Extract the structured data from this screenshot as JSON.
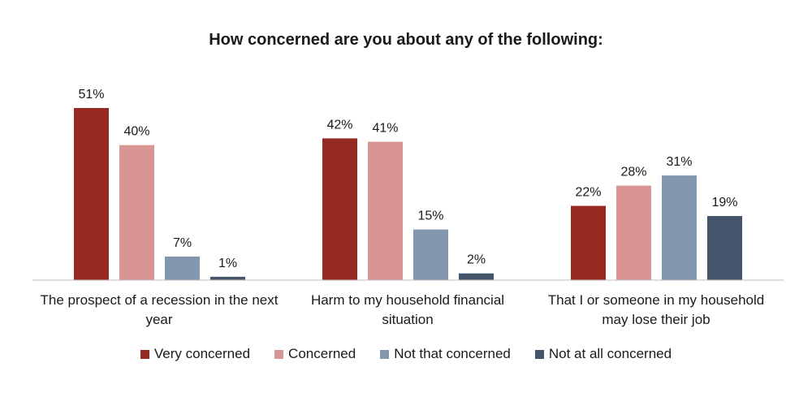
{
  "chart_data": {
    "type": "bar",
    "title": "How concerned are you about any of the following:",
    "categories": [
      "The prospect of a recession in the next year",
      "Harm to my household financial situation",
      "That I or someone in my household may lose their job"
    ],
    "series": [
      {
        "name": "Very concerned",
        "color": "#952a22",
        "values": [
          51,
          42,
          22
        ],
        "labels": [
          "51%",
          "42%",
          "22%"
        ]
      },
      {
        "name": "Concerned",
        "color": "#d99594",
        "values": [
          40,
          41,
          28
        ],
        "labels": [
          "40%",
          "41%",
          "28%"
        ]
      },
      {
        "name": "Not that concerned",
        "color": "#8497b0",
        "values": [
          7,
          15,
          31
        ],
        "labels": [
          "7%",
          "15%",
          "31%"
        ]
      },
      {
        "name": "Not at all concerned",
        "color": "#44546a",
        "values": [
          1,
          2,
          19
        ],
        "labels": [
          "1%",
          "2%",
          "19%"
        ]
      }
    ],
    "ylim": [
      0,
      51
    ],
    "grid": false,
    "legend_position": "bottom"
  }
}
